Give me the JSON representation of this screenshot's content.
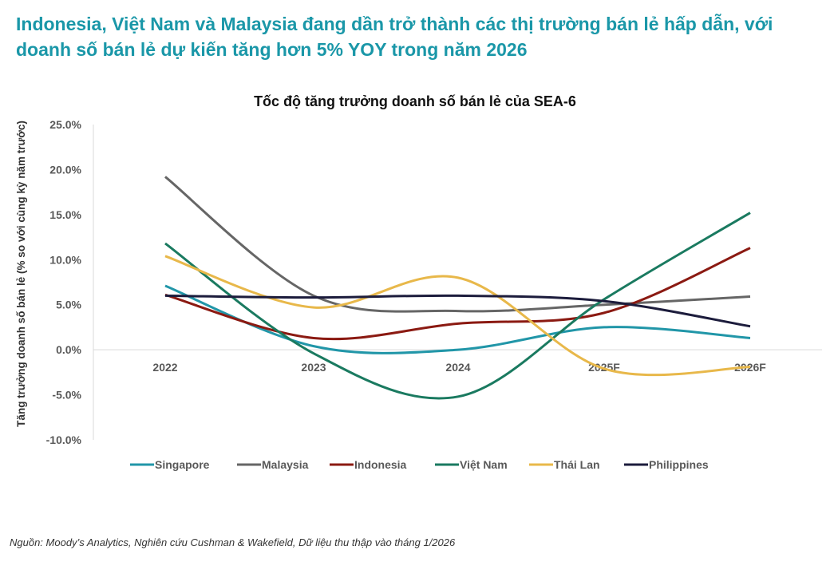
{
  "headline": "Indonesia, Việt Nam và Malaysia đang dần trở thành các thị trường bán lẻ hấp dẫn, với doanh số bán lẻ dự kiến tăng hơn 5% YOY trong năm 2026",
  "source": "Nguồn: Moody’s Analytics, Nghiên cứu Cushman & Wakefield, Dữ liệu thu thập vào tháng 1/2026",
  "chart_data": {
    "type": "line",
    "title": "Tốc độ tăng trưởng doanh số bán lẻ của SEA-6",
    "ylabel": "Tăng trưởng doanh số bán lẻ (% so với cùng kỳ năm trước)",
    "xlabel": "",
    "categories": [
      "2022",
      "2023",
      "2024",
      "2025F",
      "2026F"
    ],
    "ylim": [
      -10,
      25
    ],
    "yticks": [
      "25.0%",
      "20.0%",
      "15.0%",
      "10.0%",
      "5.0%",
      "0.0%",
      "-5.0%",
      "-10.0%"
    ],
    "grid": false,
    "smooth": true,
    "legend": "bottom",
    "series": [
      {
        "name": "Singapore",
        "color": "#2196a8",
        "values": [
          7.1,
          0.4,
          0.0,
          2.5,
          1.3
        ]
      },
      {
        "name": "Malaysia",
        "color": "#666666",
        "values": [
          19.2,
          6.0,
          4.3,
          5.0,
          5.9
        ]
      },
      {
        "name": "Indonesia",
        "color": "#8b1a12",
        "values": [
          6.1,
          1.3,
          2.9,
          4.1,
          11.3
        ]
      },
      {
        "name": "Việt Nam",
        "color": "#1a7a60",
        "values": [
          11.8,
          -0.4,
          -5.2,
          5.6,
          15.2
        ]
      },
      {
        "name": "Thái Lan",
        "color": "#e8b84a",
        "values": [
          10.4,
          4.7,
          8.0,
          -2.1,
          -1.9
        ]
      },
      {
        "name": "Philippines",
        "color": "#1c1c3c",
        "values": [
          6.0,
          5.8,
          6.0,
          5.4,
          2.6
        ]
      }
    ]
  }
}
